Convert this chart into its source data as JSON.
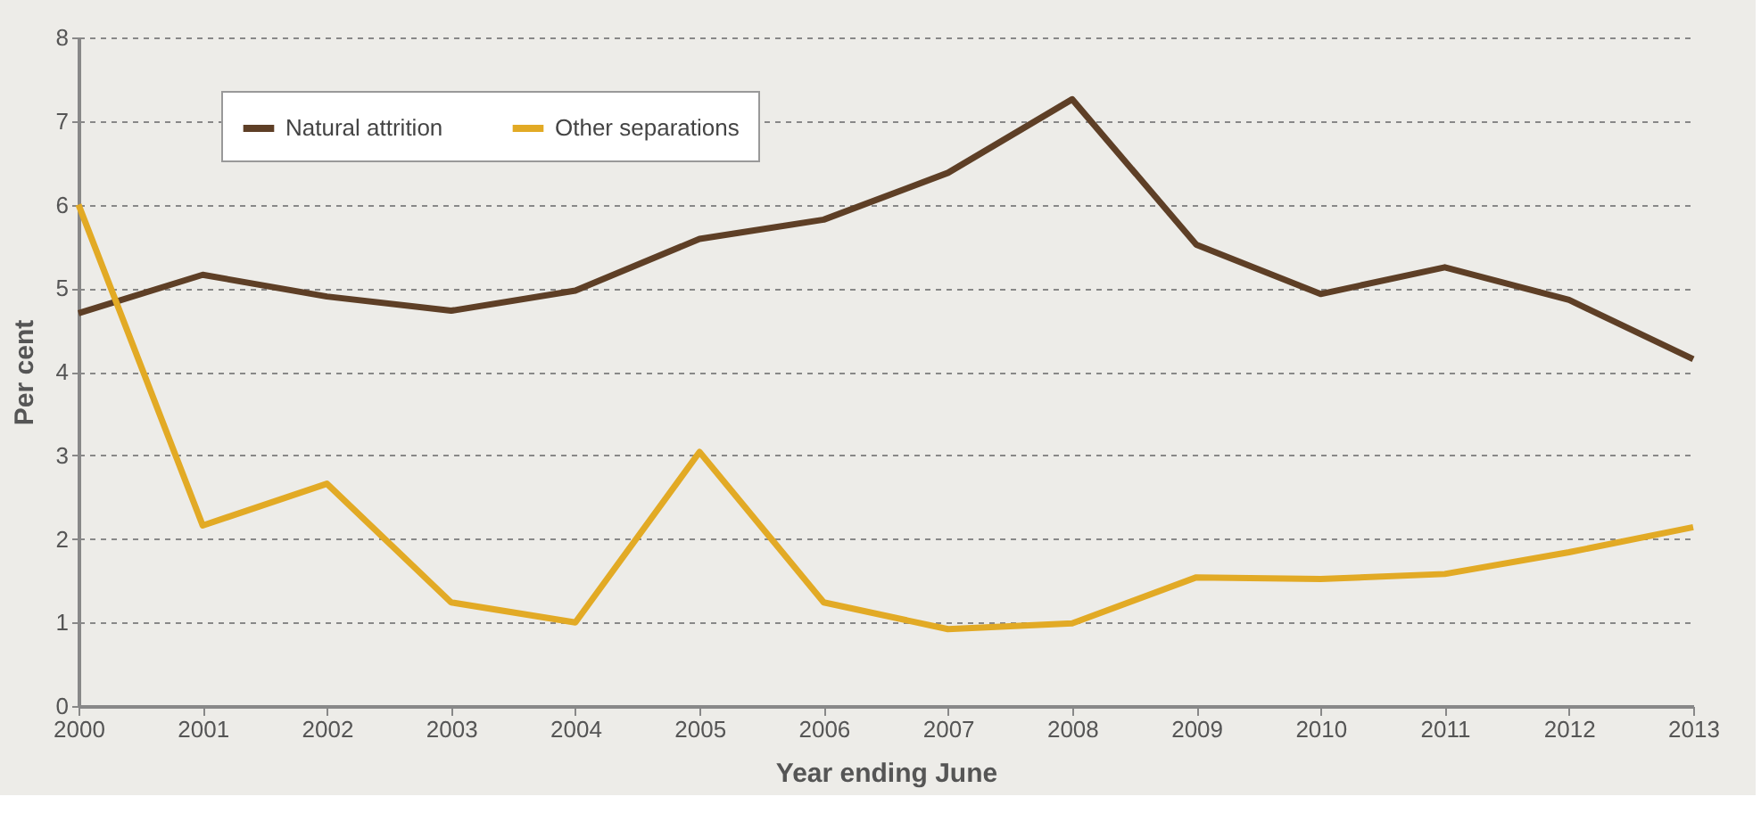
{
  "chart_data": {
    "type": "line",
    "xlabel": "Year ending June",
    "ylabel": "Per cent",
    "x": [
      2000,
      2001,
      2002,
      2003,
      2004,
      2005,
      2006,
      2007,
      2008,
      2009,
      2010,
      2011,
      2012,
      2013
    ],
    "series": [
      {
        "name": "Natural attrition",
        "color": "#5e3f26",
        "values": [
          4.7,
          5.16,
          4.9,
          4.73,
          4.97,
          5.59,
          5.82,
          6.38,
          7.26,
          5.52,
          4.93,
          5.25,
          4.86,
          4.15
        ]
      },
      {
        "name": "Other separations",
        "color": "#e2aa25",
        "values": [
          6.0,
          2.16,
          2.66,
          1.24,
          1.0,
          3.04,
          1.24,
          0.92,
          0.99,
          1.54,
          1.52,
          1.58,
          1.84,
          2.14
        ]
      }
    ],
    "xlim": [
      2000,
      2013
    ],
    "xticks": [
      2000,
      2001,
      2002,
      2003,
      2004,
      2005,
      2006,
      2007,
      2008,
      2009,
      2010,
      2011,
      2012,
      2013
    ],
    "ylim": [
      0,
      8
    ],
    "yticks": [
      0,
      1,
      2,
      3,
      4,
      5,
      6,
      7,
      8
    ],
    "grid": "y",
    "legend": "top left",
    "marker": "none",
    "line_style": "solid"
  }
}
